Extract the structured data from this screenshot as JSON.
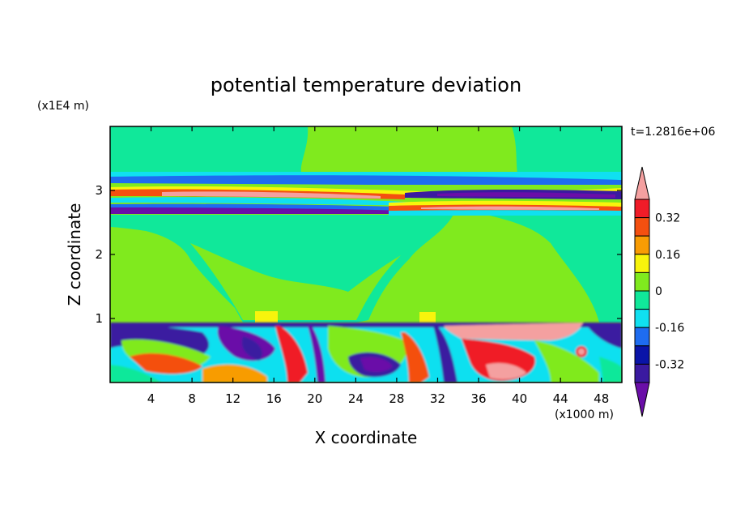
{
  "chart_data": {
    "type": "heatmap",
    "title": "potential temperature deviation",
    "xlabel": "X coordinate",
    "ylabel": "Z coordinate",
    "x_units": "(x1000 m)",
    "y_units": "(x1E4 m)",
    "time_label": "t=1.2816e+06",
    "xlim": [
      0,
      50
    ],
    "ylim": [
      0,
      4
    ],
    "x_ticks": [
      4,
      8,
      12,
      16,
      20,
      24,
      28,
      32,
      36,
      40,
      44,
      48
    ],
    "y_ticks": [
      1,
      2,
      3
    ],
    "x_tick_labels": [
      "4",
      "8",
      "12",
      "16",
      "20",
      "24",
      "28",
      "32",
      "36",
      "40",
      "44",
      "48"
    ],
    "y_tick_labels": [
      "1",
      "2",
      "3"
    ],
    "colorbar": {
      "levels": [
        -0.4,
        -0.32,
        -0.24,
        -0.16,
        -0.08,
        0,
        0.08,
        0.16,
        0.24,
        0.32,
        0.4
      ],
      "colors": [
        "#6a0ea8",
        "#3a1aa0",
        "#0a14a8",
        "#1e6cf0",
        "#10e0f0",
        "#10e89a",
        "#80ea1e",
        "#f8f40c",
        "#f89c04",
        "#f45010",
        "#f01c28",
        "#f4a0a0"
      ],
      "tick_labels": [
        "0.32",
        "0.16",
        "0",
        "-0.16",
        "-0.32"
      ],
      "extend": "both"
    },
    "regions": [
      {
        "kind": "background",
        "level": "0.04"
      },
      {
        "kind": "band",
        "z_range": [
          3.1,
          3.25
        ],
        "level": "-0.1"
      },
      {
        "kind": "band",
        "z_range": [
          2.6,
          3.1
        ],
        "level": "mixed ±0.4"
      },
      {
        "kind": "band",
        "z_range": [
          0,
          0.95
        ],
        "level": "turbulent ±0.4"
      }
    ]
  }
}
